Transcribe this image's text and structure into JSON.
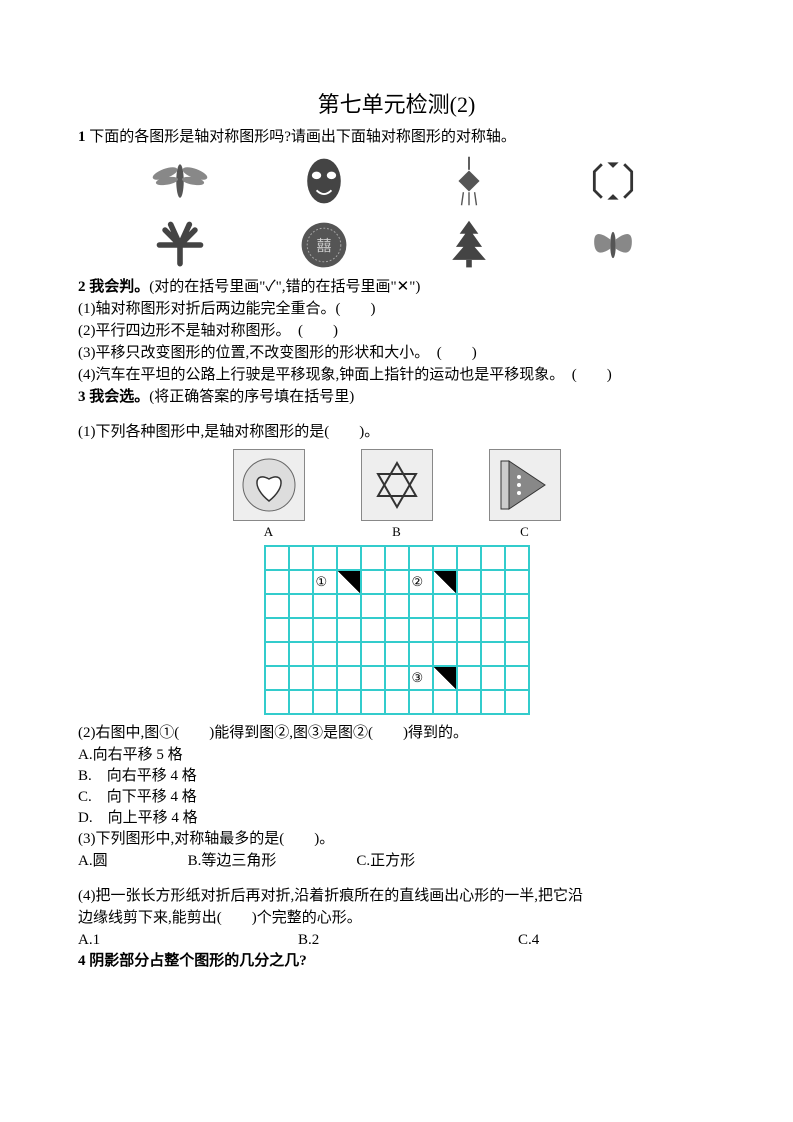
{
  "title": "第七单元检测(2)",
  "q1": {
    "num": "1",
    "text": " 下面的各图形是轴对称图形吗?请画出下面轴对称图形的对称轴。"
  },
  "q2": {
    "num": "2",
    "heading": " 我会判。",
    "instruction": "(对的在括号里画\"✓\",错的在括号里画\"✕\")",
    "items": [
      "(1)轴对称图形对折后两边能完全重合。(　　)",
      "(2)平行四边形不是轴对称图形。　(　　)",
      "(3)平移只改变图形的位置,不改变图形的形状和大小。　(　　)",
      "(4)汽车在平坦的公路上行驶是平移现象,钟面上指针的运动也是平移现象。　(　　)"
    ]
  },
  "q3": {
    "num": "3",
    "heading": " 我会选。",
    "instruction": "(将正确答案的序号填在括号里)",
    "s1": "(1)下列各种图形中,是轴对称图形的是(　　)。",
    "labels": [
      "A",
      "B",
      "C"
    ],
    "s2": "(2)右图中,图①(　　)能得到图②,图③是图②(　　)得到的。",
    "s2opts": [
      "A.向右平移 5 格",
      "B.　向右平移 4 格",
      "C.　向下平移 4 格",
      "D.　向上平移 4 格"
    ],
    "s3": "(3)下列图形中,对称轴最多的是(　　)。",
    "s3opts": [
      "A.圆",
      "B.等边三角形",
      "C.正方形"
    ],
    "s4a": "(4)把一张长方形纸对折后再对折,沿着折痕所在的直线画出心形的一半,把它沿",
    "s4b": "边缘线剪下来,能剪出(　　)个完整的心形。",
    "s4opts": [
      "A.1",
      "B.2",
      "C.4"
    ]
  },
  "q4": {
    "num": "4",
    "text": " 阴影部分占整个图形的几分之几?"
  },
  "circled": [
    "①",
    "②",
    "③"
  ]
}
